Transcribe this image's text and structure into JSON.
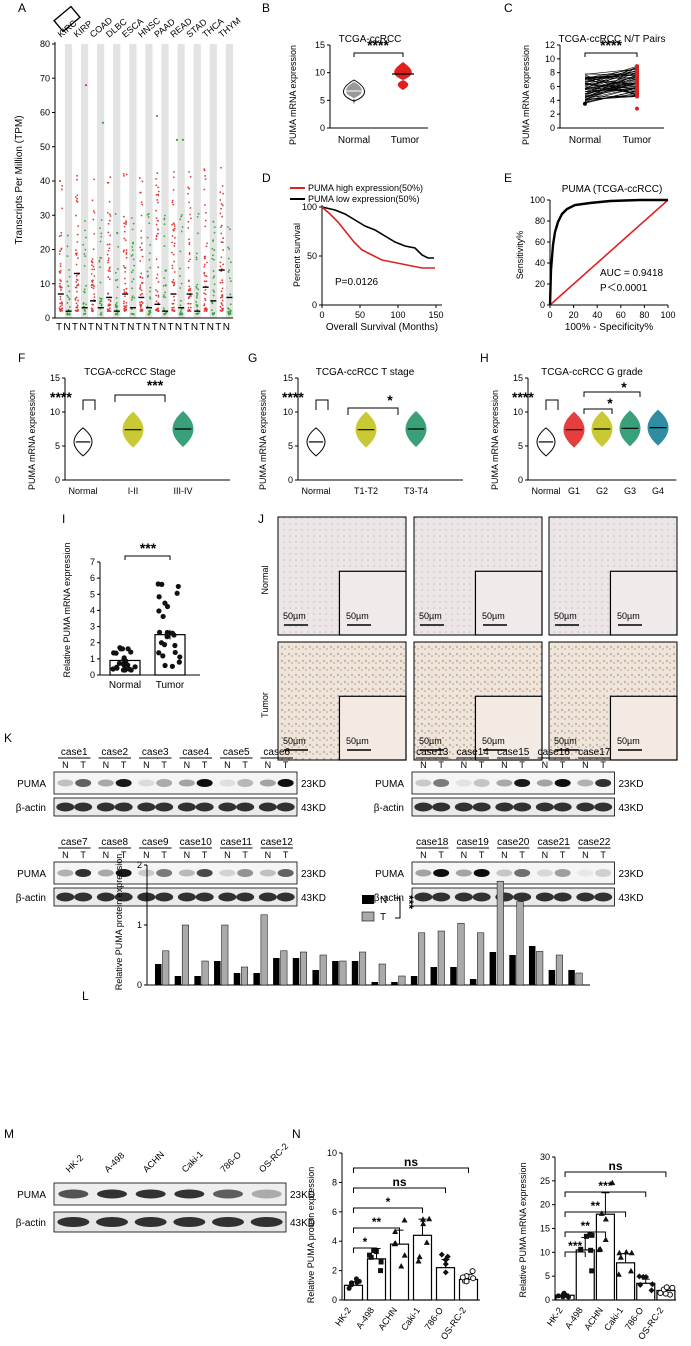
{
  "panel_letters": [
    "A",
    "B",
    "C",
    "D",
    "E",
    "F",
    "G",
    "H",
    "I",
    "J",
    "K",
    "L",
    "M",
    "N"
  ],
  "units": {
    "kd23": "23KD",
    "kd43": "43KD",
    "scale": "50µm"
  },
  "panel_a": {
    "ylabel": "Transcripts Per Million (TPM)",
    "yticks": [
      "0",
      "10",
      "20",
      "30",
      "40",
      "50",
      "60",
      "70",
      "80"
    ],
    "cancers": [
      "KIRC",
      "KIRP",
      "COAD",
      "DLBC",
      "ESCA",
      "HNSC",
      "PAAD",
      "READ",
      "STAD",
      "THCA",
      "THYM"
    ],
    "xlabels": "TNTNTNTNTNTNTNTNTNTNTN"
  },
  "panel_b": {
    "title": "TCGA-ccRCC",
    "ylabel": "PUMA mRNA expression",
    "yticks": [
      "0",
      "5",
      "10",
      "15"
    ],
    "groups": [
      "Normal",
      "Tumor"
    ],
    "sig": "****"
  },
  "panel_c": {
    "title": "TCGA-ccRCC  N/T Pairs",
    "ylabel": "PUMA mRNA expression",
    "yticks": [
      "0",
      "2",
      "4",
      "6",
      "8",
      "10",
      "12"
    ],
    "groups": [
      "Normal",
      "Tumor"
    ],
    "sig": "****"
  },
  "panel_d": {
    "legend_high": "PUMA high expression(50%)",
    "legend_low": "PUMA low expression(50%)",
    "ylabel": "Percent survival",
    "xlabel": "Overall Survival (Months)",
    "yticks": [
      "0",
      "50",
      "100"
    ],
    "xticks": [
      "0",
      "50",
      "100",
      "150"
    ],
    "pvalue": "P=0.0126"
  },
  "panel_e": {
    "title": "PUMA (TCGA-ccRCC)",
    "ylabel": "Sensitivity%",
    "xlabel": "100% - Specificity%",
    "yticks": [
      "0",
      "20",
      "40",
      "60",
      "80",
      "100"
    ],
    "xticks": [
      "0",
      "20",
      "40",
      "60",
      "80",
      "100"
    ],
    "auc": "AUC = 0.9418",
    "p": "P＜0.0001"
  },
  "panel_f": {
    "title": "TCGA-ccRCC Stage",
    "ylabel": "PUMA mRNA expression",
    "yticks": [
      "0",
      "5",
      "10",
      "15"
    ],
    "groups": [
      "Normal",
      "I-II",
      "III-IV"
    ],
    "sig1": "****",
    "sig2": "***"
  },
  "panel_g": {
    "title": "TCGA-ccRCC T stage",
    "ylabel": "PUMA mRNA expression",
    "yticks": [
      "0",
      "5",
      "10",
      "15"
    ],
    "groups": [
      "Normal",
      "T1-T2",
      "T3-T4"
    ],
    "sig1": "****",
    "sig2": "*"
  },
  "panel_h": {
    "title": "TCGA-ccRCC G grade",
    "ylabel": "PUMA mRNA expression",
    "yticks": [
      "0",
      "5",
      "10",
      "15"
    ],
    "groups": [
      "Normal",
      "G1",
      "G2",
      "G3",
      "G4"
    ],
    "sig1": "****",
    "sig2": "*",
    "sig3": "*"
  },
  "panel_i": {
    "ylabel": "Relative PUMA mRNA expression",
    "yticks": [
      "0",
      "1",
      "2",
      "3",
      "4",
      "5",
      "6",
      "7"
    ],
    "groups": [
      "Normal",
      "Tumor"
    ],
    "sig": "***"
  },
  "panel_j": {
    "row_normal": "Normal",
    "row_tumor": "Tumor"
  },
  "panel_k": {
    "puma": "PUMA",
    "actin": "β-actin",
    "n": "N",
    "t": "T",
    "cases_a": [
      "case1",
      "case2",
      "case3",
      "case4",
      "case5",
      "case6"
    ],
    "cases_b": [
      "case7",
      "case8",
      "case9",
      "case10",
      "case11",
      "case12"
    ],
    "cases_c": [
      "case13",
      "case14",
      "case15",
      "case16",
      "case17"
    ],
    "cases_d": [
      "case18",
      "case19",
      "case20",
      "case21",
      "case22"
    ]
  },
  "panel_l": {
    "ylabel": "Relative PUMA protein expression",
    "yticks": [
      "0",
      "1",
      "2"
    ],
    "legend_n": "N",
    "legend_t": "T",
    "sig": "***"
  },
  "panel_m": {
    "lines": [
      "HK-2",
      "A-498",
      "ACHN",
      "Caki-1",
      "786-O",
      "OS-RC-2"
    ],
    "puma": "PUMA",
    "actin": "β-actin"
  },
  "panel_n1": {
    "ylabel": "Relative PUMA protein expression",
    "yticks": [
      "0",
      "2",
      "4",
      "6",
      "8",
      "10"
    ],
    "sigs": [
      "*",
      "**",
      "*",
      "ns",
      "ns"
    ]
  },
  "panel_n2": {
    "ylabel": "Relative PUMA mRNA expression",
    "yticks": [
      "0",
      "5",
      "10",
      "15",
      "20",
      "25",
      "30"
    ],
    "sigs": [
      "***",
      "**",
      "**",
      "***",
      "ns"
    ]
  },
  "chart_data": [
    {
      "type": "bar",
      "panel": "L",
      "title": "",
      "ylabel": "Relative PUMA protein expression",
      "ylim": [
        0,
        2
      ],
      "categories": [
        "case1",
        "case2",
        "case3",
        "case4",
        "case5",
        "case6",
        "case7",
        "case8",
        "case9",
        "case10",
        "case11",
        "case12",
        "case13",
        "case14",
        "case15",
        "case16",
        "case17",
        "case18",
        "case19",
        "case20",
        "case21",
        "case22"
      ],
      "series": [
        {
          "name": "N",
          "values": [
            0.35,
            0.15,
            0.15,
            0.4,
            0.2,
            0.2,
            0.45,
            0.45,
            0.25,
            0.4,
            0.4,
            0.05,
            0.05,
            0.15,
            0.3,
            0.3,
            0.1,
            0.55,
            0.5,
            0.65,
            0.25,
            0.25
          ]
        },
        {
          "name": "T",
          "values": [
            0.57,
            1.0,
            0.4,
            1.0,
            0.3,
            1.17,
            0.57,
            0.55,
            0.5,
            0.4,
            0.55,
            0.35,
            0.15,
            0.87,
            0.9,
            1.03,
            0.87,
            1.73,
            1.39,
            0.56,
            0.5,
            0.2
          ]
        }
      ]
    },
    {
      "type": "bar",
      "panel": "N-left",
      "ylabel": "Relative PUMA protein expression",
      "ylim": [
        0,
        10
      ],
      "categories": [
        "HK-2",
        "A-498",
        "ACHN",
        "Caki-1",
        "786-O",
        "OS-RC-2"
      ],
      "values": [
        1.0,
        2.8,
        3.8,
        4.4,
        2.2,
        1.4
      ]
    },
    {
      "type": "bar",
      "panel": "N-right",
      "ylabel": "Relative PUMA mRNA expression",
      "ylim": [
        0,
        30
      ],
      "categories": [
        "HK-2",
        "A-498",
        "ACHN",
        "Caki-1",
        "786-O",
        "OS-RC-2"
      ],
      "values": [
        1.0,
        10.5,
        18.0,
        7.8,
        3.5,
        2.0
      ]
    },
    {
      "type": "bar",
      "panel": "I",
      "ylabel": "Relative PUMA mRNA expression",
      "ylim": [
        0,
        7
      ],
      "categories": [
        "Normal",
        "Tumor"
      ],
      "values": [
        0.9,
        2.5
      ]
    }
  ]
}
